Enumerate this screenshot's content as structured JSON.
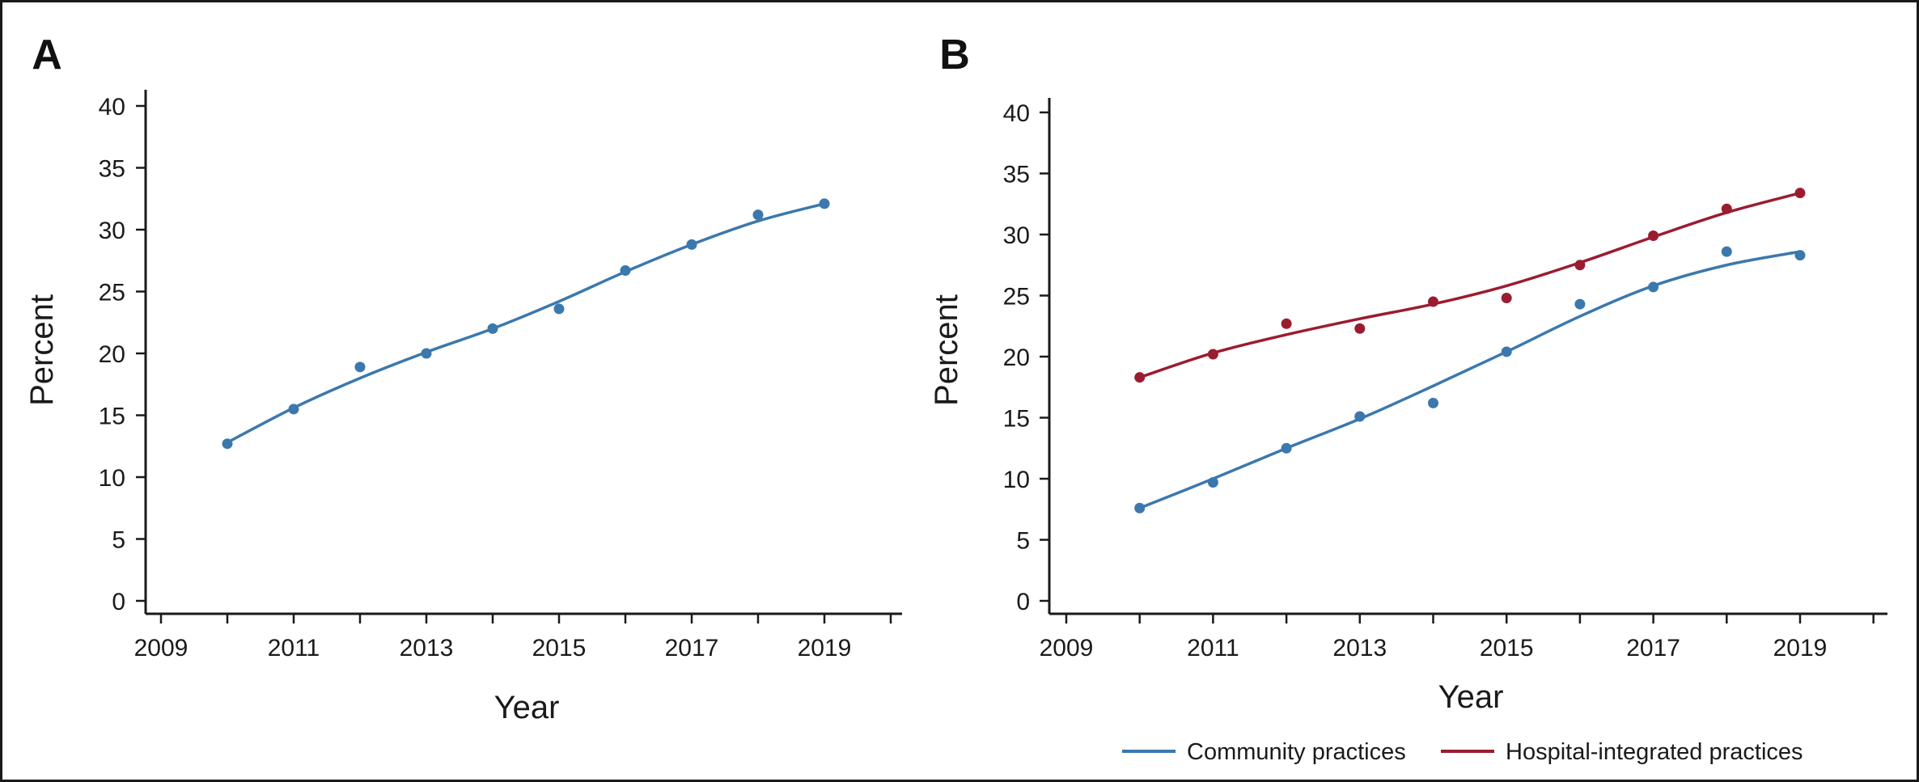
{
  "colors": {
    "community": "#3b78ad",
    "hospital": "#9b1c31",
    "axis": "#1a1a1a"
  },
  "chart_data": [
    {
      "panel": "A",
      "type": "line",
      "xlabel": "Year",
      "ylabel": "Percent",
      "xlim": [
        2009,
        2020.2
      ],
      "ylim": [
        0,
        40
      ],
      "xticks": [
        2009,
        2011,
        2013,
        2015,
        2017,
        2019
      ],
      "yticks": [
        0,
        5,
        10,
        15,
        20,
        25,
        30,
        35,
        40
      ],
      "grid": false,
      "series": [
        {
          "color_key": "community",
          "x": [
            2010,
            2011,
            2012,
            2013,
            2014,
            2015,
            2016,
            2017,
            2018,
            2019
          ],
          "points": [
            12.7,
            15.5,
            18.9,
            20.0,
            22.0,
            23.6,
            26.7,
            28.8,
            31.2,
            32.1
          ],
          "fit": [
            12.8,
            15.6,
            18.0,
            20.1,
            22.0,
            24.2,
            26.6,
            28.8,
            30.7,
            32.1
          ]
        }
      ]
    },
    {
      "panel": "B",
      "type": "line",
      "xlabel": "Year",
      "ylabel": "Percent",
      "xlim": [
        2009,
        2020.2
      ],
      "ylim": [
        0,
        40
      ],
      "xticks": [
        2009,
        2011,
        2013,
        2015,
        2017,
        2019
      ],
      "yticks": [
        0,
        5,
        10,
        15,
        20,
        25,
        30,
        35,
        40
      ],
      "grid": false,
      "legend_position": "bottom",
      "series": [
        {
          "name": "Community practices",
          "color_key": "community",
          "x": [
            2010,
            2011,
            2012,
            2013,
            2014,
            2015,
            2016,
            2017,
            2018,
            2019
          ],
          "points": [
            7.6,
            9.7,
            12.5,
            15.1,
            16.2,
            20.4,
            24.3,
            25.7,
            28.6,
            28.3
          ],
          "fit": [
            7.6,
            10.0,
            12.5,
            14.9,
            17.6,
            20.4,
            23.3,
            25.8,
            27.5,
            28.6
          ]
        },
        {
          "name": "Hospital-integrated practices",
          "color_key": "hospital",
          "x": [
            2010,
            2011,
            2012,
            2013,
            2014,
            2015,
            2016,
            2017,
            2018,
            2019
          ],
          "points": [
            18.3,
            20.2,
            22.7,
            22.3,
            24.5,
            24.8,
            27.5,
            29.9,
            32.1,
            33.4
          ],
          "fit": [
            18.3,
            20.3,
            21.8,
            23.1,
            24.3,
            25.8,
            27.7,
            29.8,
            31.8,
            33.4
          ]
        }
      ]
    }
  ]
}
